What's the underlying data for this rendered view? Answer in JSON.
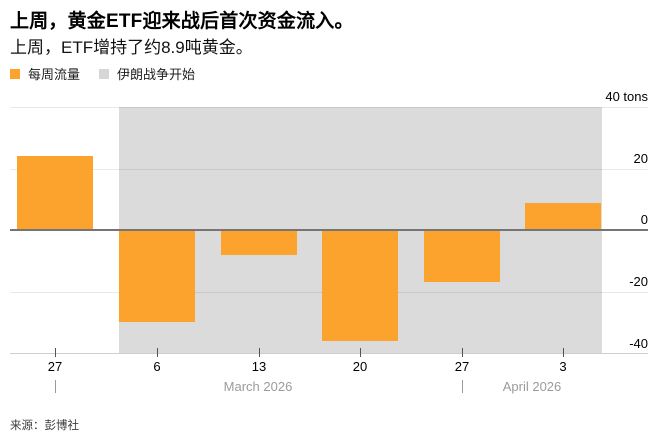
{
  "header": {
    "title": "上周，黄金ETF迎来战后首次资金流入。",
    "subtitle": "上周，ETF增持了约8.9吨黄金。"
  },
  "legend": {
    "items": [
      {
        "name": "weekly-flows",
        "label": "每周流量",
        "color": "#FCA32E"
      },
      {
        "name": "iran-war-start",
        "label": "伊朗战争开始",
        "color": "#D6D6D6"
      }
    ]
  },
  "chart_data": {
    "type": "bar",
    "title": "上周，黄金ETF迎来战后首次资金流入。",
    "subtitle": "上周，ETF增持了约8.9吨黄金。",
    "unit": "tons",
    "categories": [
      "27",
      "6",
      "13",
      "20",
      "27",
      "3"
    ],
    "values": [
      24,
      -30,
      -8,
      -36,
      -17,
      8.9
    ],
    "series_name": "每周流量",
    "bar_color": "#FCA32E",
    "ylim": [
      -42,
      40
    ],
    "y_axis": {
      "ticks": [
        {
          "value": 40,
          "label": "40 tons"
        },
        {
          "value": 20,
          "label": "20"
        },
        {
          "value": 0,
          "label": "0"
        },
        {
          "value": -20,
          "label": "-20"
        },
        {
          "value": -40,
          "label": "-40"
        }
      ]
    },
    "x_axis": {
      "month_labels": [
        "March 2026",
        "April 2026"
      ],
      "month_divider_tick_indices": [
        0,
        4
      ]
    },
    "annotation_band": {
      "label": "伊朗战争开始",
      "color": "#DBDBDB",
      "from_category_index": 1,
      "to_end": true
    },
    "grid": true,
    "legend_position": "top-left"
  },
  "footer": {
    "source": "来源：彭博社"
  }
}
